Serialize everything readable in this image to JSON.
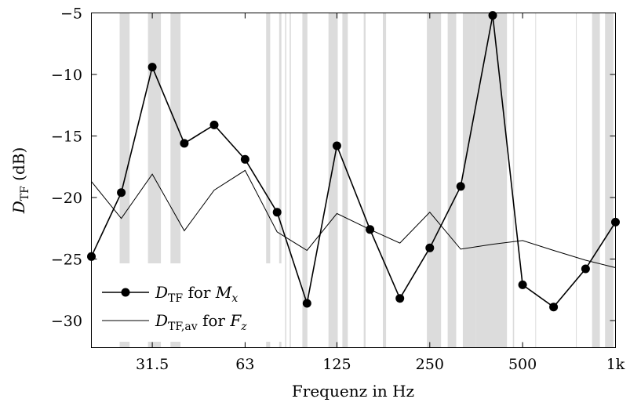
{
  "chart_data": {
    "type": "line",
    "title": "",
    "xlabel": "Frequenz in Hz",
    "ylabel": {
      "base": "D",
      "sub": "TF",
      "suffix": " (dB)"
    },
    "x_scale": "log",
    "xlim": [
      20,
      1000
    ],
    "ylim": [
      -32.2,
      -5
    ],
    "x_ticks": [
      {
        "value": 31.5,
        "label": "31.5"
      },
      {
        "value": 63,
        "label": "63"
      },
      {
        "value": 125,
        "label": "125"
      },
      {
        "value": 250,
        "label": "250"
      },
      {
        "value": 500,
        "label": "500"
      },
      {
        "value": 1000,
        "label": "1k"
      }
    ],
    "y_ticks": [
      -30,
      -25,
      -20,
      -15,
      -10,
      -5
    ],
    "y_tick_labels": [
      "−30",
      "−25",
      "−20",
      "−15",
      "−10",
      "−5"
    ],
    "grid": false,
    "legend_position": "bottom-left",
    "shaded_regions_hz": [
      [
        24.7,
        26.6
      ],
      [
        30.5,
        33.6
      ],
      [
        36.1,
        38.9
      ],
      [
        73.7,
        76.0
      ],
      [
        81.2,
        82.6
      ],
      [
        84.9,
        85.7
      ],
      [
        87.8,
        88.7
      ],
      [
        96.6,
        100.3
      ],
      [
        117.4,
        125.8
      ],
      [
        130.2,
        135.6
      ],
      [
        152.7,
        154.9
      ],
      [
        176.2,
        180.5
      ],
      [
        244.6,
        271.9
      ],
      [
        285.8,
        304.6
      ],
      [
        320.0,
        353.0
      ],
      [
        353.0,
        445.0
      ],
      [
        465.0,
        469.5
      ],
      [
        549.5,
        552.5
      ],
      [
        744.0,
        749.0
      ],
      [
        840.0,
        890.0
      ],
      [
        925.0,
        985.0
      ]
    ],
    "shade_color": "#dcdcdc",
    "series": [
      {
        "legend": {
          "base": "D",
          "sub": "TF",
          "mid": " for ",
          "var": "M",
          "var_sub": "x"
        },
        "style": "line-with-markers",
        "color": "#000000",
        "x": [
          20,
          25,
          31.5,
          40,
          50,
          63,
          80,
          100,
          125,
          160,
          200,
          250,
          315,
          400,
          500,
          630,
          800,
          1000
        ],
        "y": [
          -24.8,
          -19.6,
          -9.4,
          -15.6,
          -14.1,
          -16.9,
          -21.2,
          -28.6,
          -15.8,
          -22.6,
          -28.2,
          -24.1,
          -19.1,
          -5.2,
          -27.1,
          -28.9,
          -25.8,
          -22.0
        ]
      },
      {
        "legend": {
          "base": "D",
          "sub": "TF,av",
          "mid": " for ",
          "var": "F",
          "var_sub": "z"
        },
        "style": "line",
        "color": "#000000",
        "x": [
          20,
          25,
          31.5,
          40,
          50,
          63,
          80,
          100,
          125,
          160,
          200,
          250,
          315,
          400,
          500,
          630,
          800,
          1000
        ],
        "y": [
          -18.7,
          -21.7,
          -18.1,
          -22.7,
          -19.4,
          -17.8,
          -22.8,
          -24.3,
          -21.3,
          -22.6,
          -23.7,
          -21.2,
          -24.2,
          -23.8,
          -23.5,
          -24.3,
          -25.1,
          -25.7
        ]
      }
    ]
  }
}
